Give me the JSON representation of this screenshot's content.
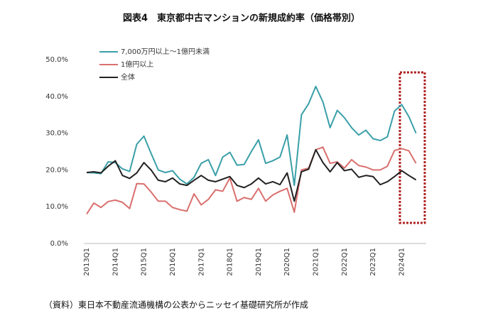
{
  "chart_data": {
    "type": "line",
    "title": "図表4　東京都中古マンションの新規成約率（価格帯別）",
    "source": "（資料）東日本不動産流通機構の公表からニッセイ基礎研究所が作成",
    "categories": [
      "2013Q1",
      null,
      null,
      null,
      "2014Q1",
      null,
      null,
      null,
      "2015Q1",
      null,
      null,
      null,
      "2016Q1",
      null,
      null,
      null,
      "2017Q1",
      null,
      null,
      null,
      "2018Q1",
      null,
      null,
      null,
      "2019Q1",
      null,
      null,
      null,
      "2020Q1",
      null,
      null,
      null,
      "2021Q1",
      null,
      null,
      null,
      "2022Q1",
      null,
      null,
      null,
      "2023Q1",
      null,
      null,
      null,
      "2024Q1",
      null,
      null
    ],
    "series": [
      {
        "name": "7,000万円以上～1億円未満",
        "color": "#3a9fa8",
        "values": [
          19.3,
          19.2,
          19,
          22.2,
          22,
          20.3,
          19.6,
          27,
          29.2,
          24.5,
          20,
          19.3,
          19.8,
          17.5,
          16.2,
          18,
          21.8,
          22.8,
          18.5,
          23.5,
          24.8,
          21.3,
          21.5,
          25,
          28.2,
          21.8,
          22.5,
          23.5,
          29.5,
          15.8,
          35,
          38,
          42.7,
          38.5,
          31.5,
          36.2,
          34.2,
          31.5,
          29.5,
          30.8,
          28.5,
          28,
          29,
          36,
          37.8,
          34.5,
          30
        ]
      },
      {
        "name": "1億円以上",
        "color": "#d9706e",
        "values": [
          8,
          11,
          9.8,
          11.4,
          11.8,
          11.2,
          9.5,
          16.3,
          16.2,
          14,
          11.5,
          11.5,
          9.8,
          9.2,
          8.8,
          13.5,
          10.5,
          12,
          14.6,
          14.2,
          17.8,
          11.5,
          12.5,
          12,
          15,
          11.5,
          13.2,
          14.2,
          15,
          8.5,
          20,
          20.5,
          25.5,
          26.2,
          21.8,
          22.2,
          20.5,
          22.8,
          21.2,
          20.8,
          20,
          20,
          21,
          25.3,
          25.8,
          25.2,
          21.8
        ]
      },
      {
        "name": "全体",
        "color": "#222222",
        "values": [
          19.3,
          19.5,
          19.2,
          21,
          22.5,
          18.5,
          17.7,
          19.2,
          22,
          20,
          17.2,
          16.8,
          17.8,
          16.2,
          15.8,
          17.2,
          18.5,
          17.2,
          16.8,
          17.5,
          18.2,
          15.8,
          15.2,
          16.2,
          17.8,
          16.2,
          16.8,
          16,
          19.2,
          11.5,
          19.5,
          20.2,
          25.5,
          22,
          19.5,
          22,
          19.8,
          20.2,
          18,
          18.5,
          18.2,
          16,
          16.8,
          18.2,
          19.8,
          18.5,
          17.3
        ]
      }
    ],
    "ylim": [
      0,
      50
    ],
    "yticks": [
      {
        "value": 0,
        "label": "0.0%"
      },
      {
        "value": 10,
        "label": "10.0%"
      },
      {
        "value": 20,
        "label": "20.0%"
      },
      {
        "value": 30,
        "label": "30.0%"
      },
      {
        "value": 40,
        "label": "40.0%"
      },
      {
        "value": 50,
        "label": "50.0%"
      }
    ],
    "grid": false,
    "legend": "upper left"
  }
}
